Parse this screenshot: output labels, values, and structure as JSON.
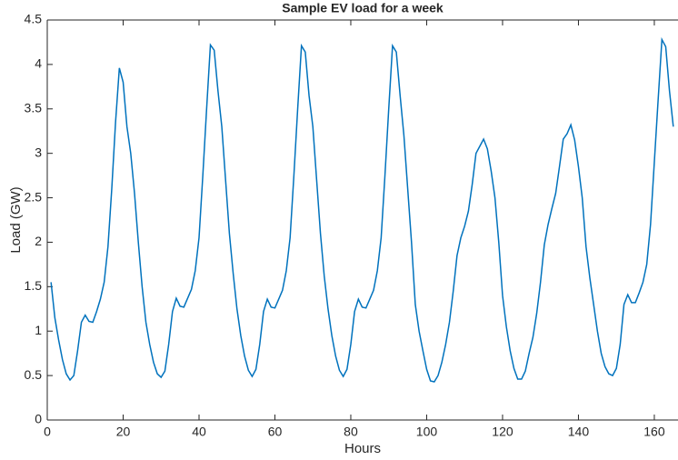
{
  "chart_data": {
    "type": "line",
    "title": "Sample EV load for a week",
    "xlabel": "Hours",
    "ylabel": "Load (GW)",
    "x": [
      1,
      2,
      3,
      4,
      5,
      6,
      7,
      8,
      9,
      10,
      11,
      12,
      13,
      14,
      15,
      16,
      17,
      18,
      19,
      20,
      21,
      22,
      23,
      24,
      25,
      26,
      27,
      28,
      29,
      30,
      31,
      32,
      33,
      34,
      35,
      36,
      37,
      38,
      39,
      40,
      41,
      42,
      43,
      44,
      45,
      46,
      47,
      48,
      49,
      50,
      51,
      52,
      53,
      54,
      55,
      56,
      57,
      58,
      59,
      60,
      61,
      62,
      63,
      64,
      65,
      66,
      67,
      68,
      69,
      70,
      71,
      72,
      73,
      74,
      75,
      76,
      77,
      78,
      79,
      80,
      81,
      82,
      83,
      84,
      85,
      86,
      87,
      88,
      89,
      90,
      91,
      92,
      93,
      94,
      95,
      96,
      97,
      98,
      99,
      100,
      101,
      102,
      103,
      104,
      105,
      106,
      107,
      108,
      109,
      110,
      111,
      112,
      113,
      114,
      115,
      116,
      117,
      118,
      119,
      120,
      121,
      122,
      123,
      124,
      125,
      126,
      127,
      128,
      129,
      130,
      131,
      132,
      133,
      134,
      135,
      136,
      137,
      138,
      139,
      140,
      141,
      142,
      143,
      144,
      145,
      146,
      147,
      148,
      149,
      150,
      151,
      152,
      153,
      154,
      155,
      156,
      157,
      158,
      159,
      160,
      161,
      162,
      163,
      164,
      165
    ],
    "series": [
      {
        "name": "Load",
        "color": "#0072bd",
        "values": [
          1.55,
          1.15,
          0.9,
          0.68,
          0.52,
          0.45,
          0.5,
          0.78,
          1.1,
          1.18,
          1.11,
          1.1,
          1.22,
          1.36,
          1.55,
          1.95,
          2.6,
          3.35,
          3.96,
          3.8,
          3.3,
          3.0,
          2.55,
          2.0,
          1.5,
          1.1,
          0.85,
          0.65,
          0.52,
          0.48,
          0.55,
          0.85,
          1.22,
          1.37,
          1.28,
          1.27,
          1.37,
          1.47,
          1.68,
          2.05,
          2.75,
          3.5,
          4.22,
          4.16,
          3.7,
          3.3,
          2.7,
          2.1,
          1.65,
          1.25,
          0.95,
          0.72,
          0.56,
          0.49,
          0.57,
          0.85,
          1.22,
          1.36,
          1.27,
          1.26,
          1.36,
          1.46,
          1.68,
          2.05,
          2.75,
          3.5,
          4.21,
          4.14,
          3.65,
          3.3,
          2.7,
          2.1,
          1.62,
          1.25,
          0.95,
          0.72,
          0.56,
          0.49,
          0.57,
          0.85,
          1.22,
          1.36,
          1.27,
          1.26,
          1.36,
          1.46,
          1.68,
          2.05,
          2.75,
          3.5,
          4.21,
          4.14,
          3.65,
          3.2,
          2.6,
          2.0,
          1.3,
          1.0,
          0.78,
          0.57,
          0.44,
          0.43,
          0.5,
          0.65,
          0.85,
          1.1,
          1.45,
          1.85,
          2.05,
          2.18,
          2.35,
          2.65,
          3.0,
          3.08,
          3.16,
          3.05,
          2.8,
          2.5,
          2.0,
          1.4,
          1.05,
          0.78,
          0.58,
          0.46,
          0.46,
          0.55,
          0.75,
          0.93,
          1.2,
          1.55,
          1.97,
          2.2,
          2.38,
          2.55,
          2.85,
          3.16,
          3.22,
          3.32,
          3.15,
          2.85,
          2.5,
          1.95,
          1.6,
          1.3,
          1.0,
          0.75,
          0.6,
          0.52,
          0.5,
          0.58,
          0.85,
          1.3,
          1.41,
          1.32,
          1.32,
          1.43,
          1.55,
          1.75,
          2.2,
          2.9,
          3.6,
          4.28,
          4.2,
          3.7,
          3.3
        ]
      }
    ],
    "xlim": [
      0,
      166
    ],
    "ylim": [
      0,
      4.5
    ],
    "xticks": [
      0,
      20,
      40,
      60,
      80,
      100,
      120,
      140,
      160
    ],
    "yticks": [
      0,
      0.5,
      1,
      1.5,
      2,
      2.5,
      3,
      3.5,
      4,
      4.5
    ]
  }
}
